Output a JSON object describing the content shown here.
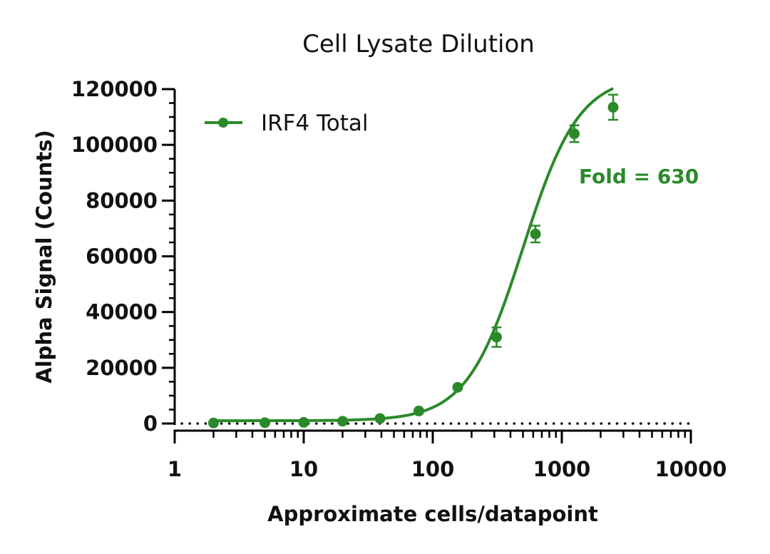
{
  "chart_data": {
    "type": "scatter",
    "title": "Cell Lysate Dilution",
    "xlabel": "Approximate cells/datapoint",
    "ylabel": "Alpha Signal (Counts)",
    "x_scale": "log",
    "xlim": [
      1,
      10000
    ],
    "ylim": [
      0,
      120000
    ],
    "x_ticks": [
      1,
      10,
      100,
      1000,
      10000
    ],
    "x_tick_labels": [
      "1",
      "10",
      "100",
      "1000",
      "10000"
    ],
    "y_ticks": [
      0,
      20000,
      40000,
      60000,
      80000,
      100000,
      120000
    ],
    "y_tick_labels": [
      "0",
      "20000",
      "40000",
      "60000",
      "80000",
      "100000",
      "120000"
    ],
    "baseline": {
      "y": 0,
      "style": "dotted"
    },
    "legend_position": "top-left",
    "annotation": {
      "text": "Fold = 630",
      "color": "#2a8a2a"
    },
    "series": [
      {
        "name": "IRF4 Total",
        "color": "#2a8a2a",
        "x": [
          2,
          5,
          10,
          20,
          39,
          78,
          156,
          312,
          625,
          1250,
          2500
        ],
        "y": [
          200,
          300,
          400,
          800,
          1800,
          4500,
          13000,
          31000,
          68000,
          104000,
          113500
        ],
        "error": [
          0,
          0,
          0,
          0,
          0,
          0,
          0,
          3500,
          3000,
          3000,
          4500
        ],
        "fit": {
          "type": "sigmoid",
          "bottom": 1000,
          "top": 125000,
          "ec50": 500,
          "hill": 2.0
        }
      }
    ]
  }
}
